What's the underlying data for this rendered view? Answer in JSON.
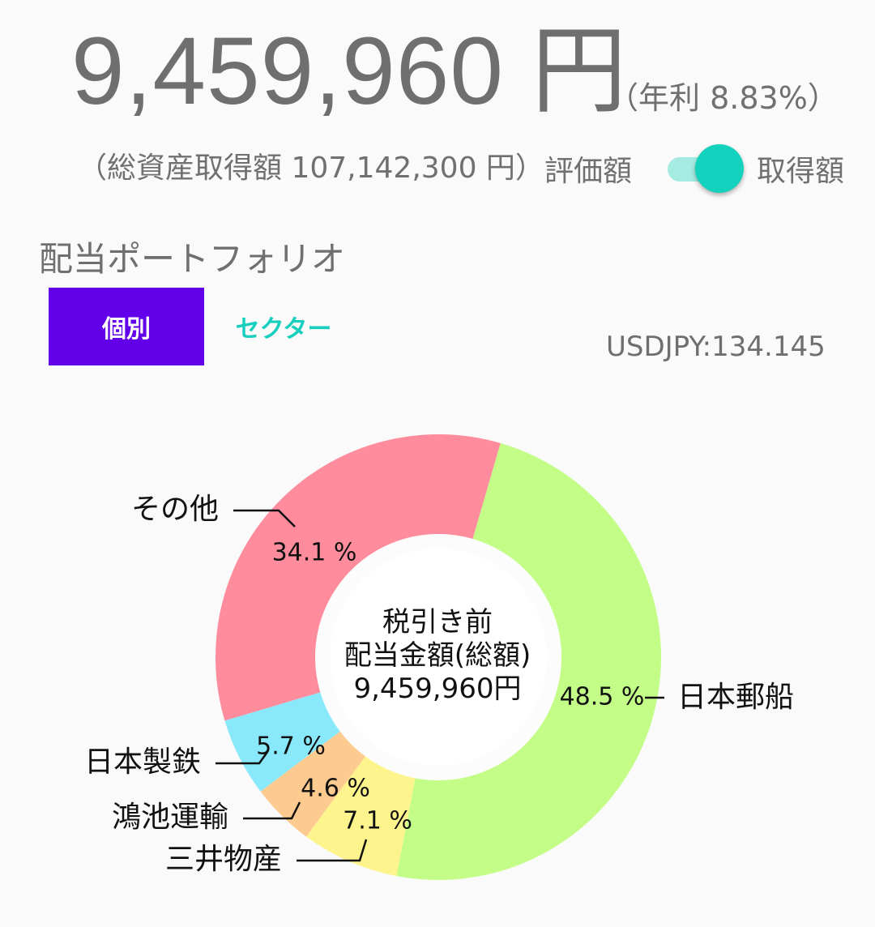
{
  "header": {
    "total_amount": "9,459,960 円",
    "annual_yield": "（年利 8.83%）",
    "acquisition_total": "（総資産取得額 107,142,300 円）",
    "toggle_left_label": "評価額",
    "toggle_right_label": "取得額",
    "toggle_state": "取得額"
  },
  "section": {
    "title": "配当ポートフォリオ",
    "tabs": [
      {
        "label": "個別",
        "selected": true
      },
      {
        "label": "セクター",
        "selected": false
      }
    ],
    "fx_rate": "USDJPY:134.145"
  },
  "colors": {
    "accent": "#6200ea",
    "teal": "#12d2be"
  },
  "chart_data": {
    "type": "pie",
    "variant": "donut",
    "center_label": [
      "税引き前",
      "配当金額(総額)",
      "9,459,960円"
    ],
    "slices": [
      {
        "label": "日本郵船",
        "value": 48.5,
        "value_label": "48.5 %",
        "color": "#c3fd88"
      },
      {
        "label": "三井物産",
        "value": 7.1,
        "value_label": "7.1 %",
        "color": "#fef48e"
      },
      {
        "label": "鴻池運輸",
        "value": 4.6,
        "value_label": "4.6 %",
        "color": "#fdca8f"
      },
      {
        "label": "日本製鉄",
        "value": 5.7,
        "value_label": "5.7 %",
        "color": "#89e9fb"
      },
      {
        "label": "その他",
        "value": 34.1,
        "value_label": "34.1 %",
        "color": "#fe8c9c"
      }
    ]
  }
}
